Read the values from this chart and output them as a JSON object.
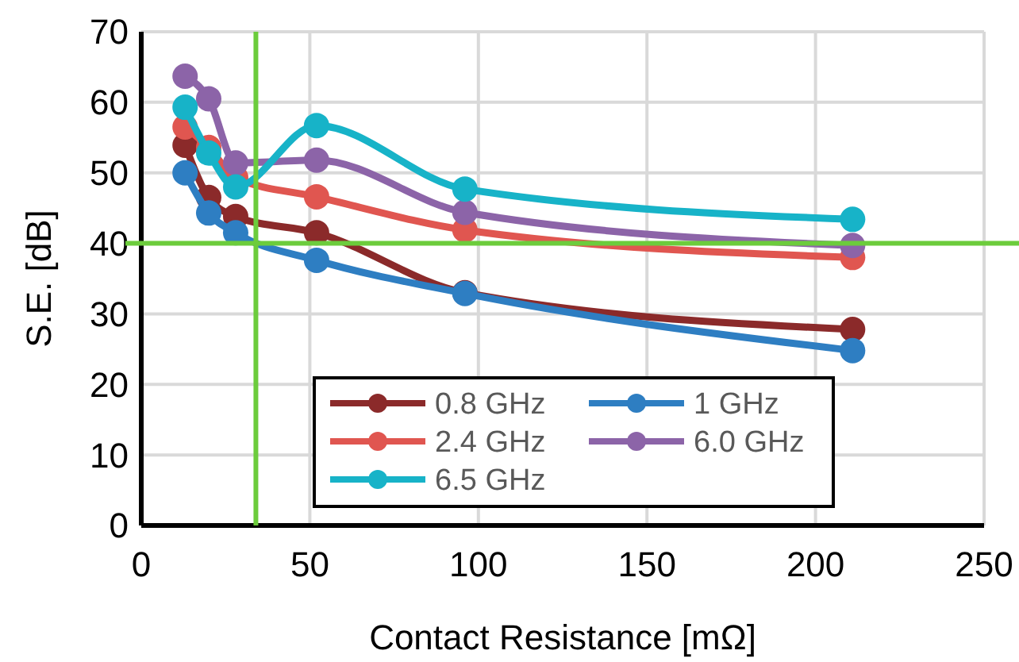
{
  "chart_data": {
    "type": "line",
    "xlabel": "Contact Resistance [mΩ]",
    "ylabel": "S.E. [dB]",
    "x": [
      13,
      20,
      28,
      52,
      96,
      211
    ],
    "series": [
      {
        "name": "0.8 GHz",
        "color": "#8b2a2a",
        "values": [
          53.9,
          46.5,
          43.8,
          41.5,
          33,
          27.8
        ]
      },
      {
        "name": "1 GHz",
        "color": "#2e7ec2",
        "values": [
          50,
          44.3,
          41.5,
          37.6,
          32.9,
          24.8
        ]
      },
      {
        "name": "2.4 GHz",
        "color": "#e05650",
        "values": [
          56.5,
          53.6,
          49.3,
          46.6,
          41.9,
          38
        ]
      },
      {
        "name": "6.0 GHz",
        "color": "#8c64a8",
        "values": [
          63.7,
          60.5,
          51.4,
          51.8,
          44.4,
          39.7
        ]
      },
      {
        "name": "6.5 GHz",
        "color": "#17b3c8",
        "values": [
          59.3,
          52.8,
          48,
          56.7,
          47.7,
          43.4
        ]
      }
    ],
    "xlim": [
      0,
      250
    ],
    "xticks": [
      0,
      50,
      100,
      150,
      200,
      250
    ],
    "ylim": [
      0,
      70
    ],
    "yticks": [
      0,
      10,
      20,
      30,
      40,
      50,
      60,
      70
    ],
    "ref_lines": [
      {
        "axis": "y",
        "value": 40,
        "color": "#6ccc3c"
      },
      {
        "axis": "x",
        "value": 34,
        "color": "#6ccc3c"
      }
    ],
    "grid": true,
    "legend": "bottom",
    "marker": "circle",
    "line_style": "solid"
  }
}
